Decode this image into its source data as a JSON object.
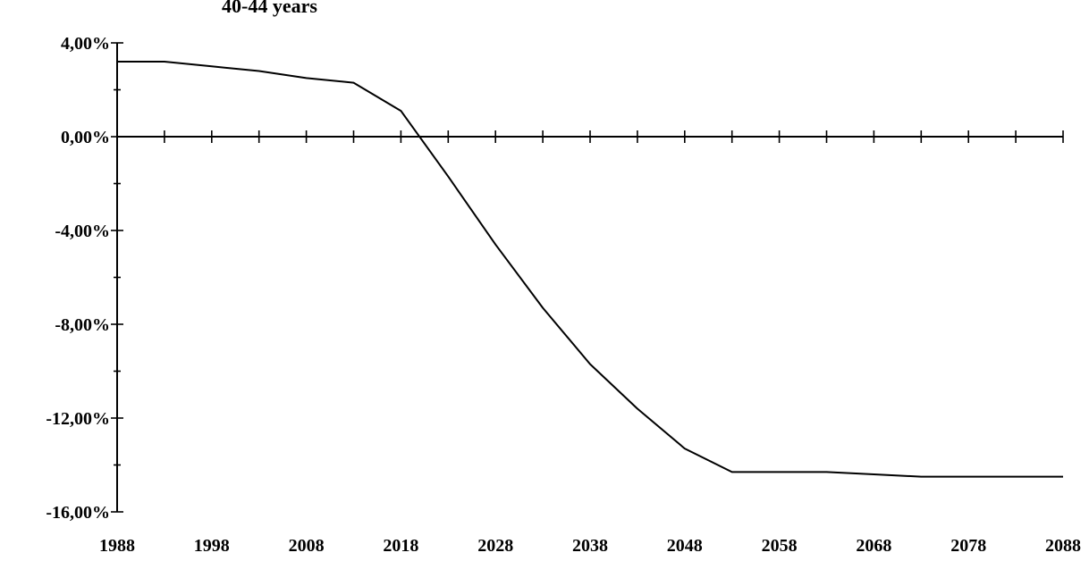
{
  "chart_data": {
    "type": "line",
    "title": "40-44 years",
    "xlabel": "",
    "ylabel": "",
    "xlim": [
      1988,
      2088
    ],
    "ylim": [
      -16,
      4
    ],
    "x_ticks": [
      1988,
      1998,
      2008,
      2018,
      2028,
      2038,
      2048,
      2058,
      2068,
      2078,
      2088
    ],
    "x_tick_labels": [
      "1988",
      "1998",
      "2008",
      "2018",
      "2028",
      "2038",
      "2048",
      "2058",
      "2068",
      "2078",
      "2088"
    ],
    "y_ticks": [
      4,
      0,
      -4,
      -8,
      -12,
      -16
    ],
    "y_tick_labels": [
      "4,00%",
      "0,00%",
      "-4,00%",
      "-8,00%",
      "-12,00%",
      "-16,00%"
    ],
    "grid": false,
    "series": [
      {
        "color": "#000000",
        "x": [
          1988,
          1993,
          1998,
          2003,
          2008,
          2013,
          2018,
          2023,
          2028,
          2033,
          2038,
          2043,
          2048,
          2053,
          2058,
          2063,
          2068,
          2073,
          2078,
          2083,
          2088
        ],
        "values": [
          3.2,
          3.2,
          3.0,
          2.8,
          2.5,
          2.3,
          1.1,
          -1.7,
          -4.6,
          -7.3,
          -9.7,
          -11.6,
          -13.3,
          -14.3,
          -14.3,
          -14.3,
          -14.4,
          -14.5,
          -14.5,
          -14.5,
          -14.5
        ]
      }
    ]
  }
}
